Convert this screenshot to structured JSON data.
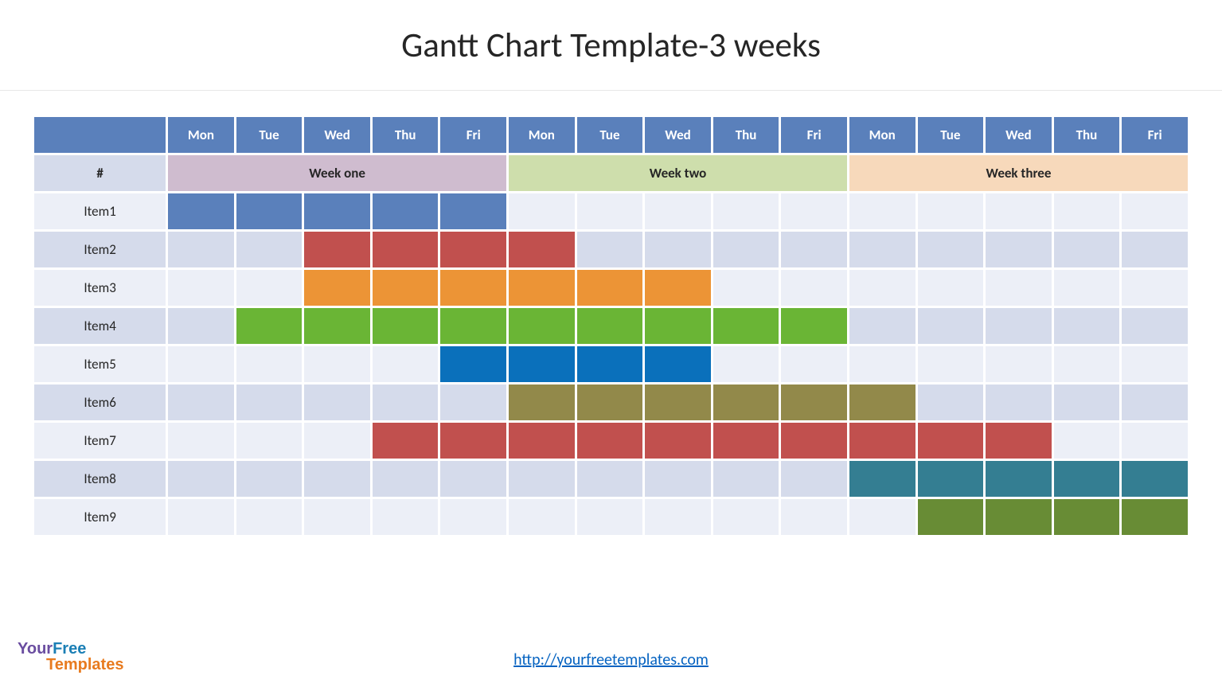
{
  "title": "Gantt Chart Template-3 weeks",
  "link": "http://yourfreetemplates.com",
  "logo": {
    "part1": "Your",
    "part2": "Free",
    "part3": "Templates"
  },
  "colors": {
    "header_bg": "#5a80bb",
    "header_fg": "#ffffff",
    "row_bg_odd": "#eceff7",
    "row_bg_even": "#d5dbeb",
    "hash_bg": "#d5dbeb",
    "week1_bg": "#cfbccf",
    "week2_bg": "#cedeac",
    "week3_bg": "#f7d9bb"
  },
  "days": [
    "Mon",
    "Tue",
    "Wed",
    "Thu",
    "Fri",
    "Mon",
    "Tue",
    "Wed",
    "Thu",
    "Fri",
    "Mon",
    "Tue",
    "Wed",
    "Thu",
    "Fri"
  ],
  "hash_label": "#",
  "weeks": [
    {
      "label": "Week one",
      "span": 5
    },
    {
      "label": "Week two",
      "span": 5
    },
    {
      "label": "Week three",
      "span": 5
    }
  ],
  "items": [
    {
      "label": "Item1",
      "start": 0,
      "end": 4,
      "color": "#5a80bb"
    },
    {
      "label": "Item2",
      "start": 2,
      "end": 5,
      "color": "#c1504e"
    },
    {
      "label": "Item3",
      "start": 2,
      "end": 7,
      "color": "#ec9436"
    },
    {
      "label": "Item4",
      "start": 1,
      "end": 9,
      "color": "#6ab535"
    },
    {
      "label": "Item5",
      "start": 4,
      "end": 7,
      "color": "#0a70bb"
    },
    {
      "label": "Item6",
      "start": 5,
      "end": 10,
      "color": "#92894a"
    },
    {
      "label": "Item7",
      "start": 3,
      "end": 12,
      "color": "#c1504e"
    },
    {
      "label": "Item8",
      "start": 10,
      "end": 14,
      "color": "#347e92"
    },
    {
      "label": "Item9",
      "start": 11,
      "end": 14,
      "color": "#688c35"
    }
  ]
}
